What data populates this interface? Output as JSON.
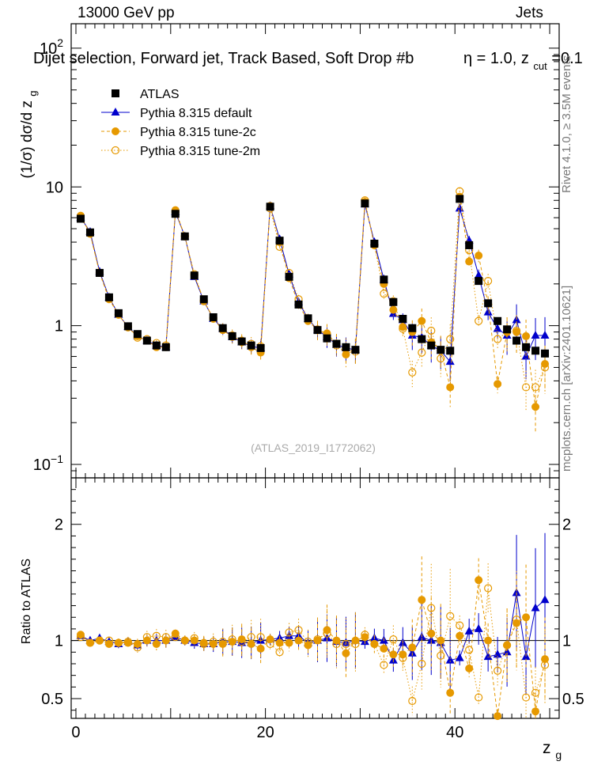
{
  "header": {
    "energy": "13000 GeV pp",
    "category": "Jets",
    "title_main": "Dijet selection, Forward jet, Track Based, Soft Drop #b",
    "title_eta": "η = 1.0, z",
    "title_cut": "cut",
    "title_tail": "=0.1"
  },
  "side_labels": {
    "rivet": "Rivet 4.1.0, ≥ 3.5M events",
    "mcplots": "mcplots.cern.ch [arXiv:2401.10621]"
  },
  "watermark": "(ATLAS_2019_I1772062)",
  "colors": {
    "atlas": "#000000",
    "default": "#0000cc",
    "tune2c": "#e69900",
    "tune2m": "#e69900",
    "refline": "#000000"
  },
  "chart_data": [
    {
      "type": "scatter",
      "panel": "main",
      "ylabel_pre": "(1/σ) dσ/d z",
      "ylabel_sub": "g",
      "yscale": "log",
      "xlim": [
        -0.5,
        51
      ],
      "ylim": [
        0.08,
        150
      ],
      "yticks": [
        {
          "v": 0.1,
          "base": "10",
          "exp": "−1"
        },
        {
          "v": 1,
          "base": "1",
          "exp": ""
        },
        {
          "v": 10,
          "base": "10",
          "exp": ""
        },
        {
          "v": 100,
          "base": "10",
          "exp": "2"
        }
      ],
      "x": [
        0.5,
        1.5,
        2.5,
        3.5,
        4.5,
        5.5,
        6.5,
        7.5,
        8.5,
        9.5,
        10.5,
        11.5,
        12.5,
        13.5,
        14.5,
        15.5,
        16.5,
        17.5,
        18.5,
        19.5,
        20.5,
        21.5,
        22.5,
        23.5,
        24.5,
        25.5,
        26.5,
        27.5,
        28.5,
        29.5,
        30.5,
        31.5,
        32.5,
        33.5,
        34.5,
        35.5,
        36.5,
        37.5,
        38.5,
        39.5,
        40.5,
        41.5,
        42.5,
        43.5,
        44.5,
        45.5,
        46.5,
        47.5,
        48.5,
        49.5
      ],
      "legend": [
        "ATLAS",
        "Pythia 8.315 default",
        "Pythia 8.315 tune-2c",
        "Pythia 8.315 tune-2m"
      ],
      "series": [
        {
          "name": "ATLAS",
          "values": [
            5.9,
            4.7,
            2.4,
            1.6,
            1.23,
            0.99,
            0.87,
            0.78,
            0.72,
            0.7,
            6.4,
            4.4,
            2.3,
            1.55,
            1.15,
            0.96,
            0.84,
            0.77,
            0.72,
            0.69,
            7.2,
            4.1,
            2.25,
            1.42,
            1.13,
            0.93,
            0.81,
            0.74,
            0.7,
            0.67,
            7.6,
            3.9,
            2.15,
            1.48,
            1.12,
            0.96,
            0.8,
            0.72,
            0.67,
            0.66,
            8.2,
            3.8,
            2.1,
            1.45,
            1.08,
            0.94,
            0.78,
            0.7,
            0.66,
            0.63
          ]
        },
        {
          "name": "Pythia 8.315 default",
          "values": [
            6.0,
            4.75,
            2.45,
            1.6,
            1.2,
            0.98,
            0.84,
            0.78,
            0.72,
            0.7,
            6.6,
            4.4,
            2.25,
            1.5,
            1.12,
            0.95,
            0.83,
            0.76,
            0.71,
            0.69,
            7.3,
            4.2,
            2.35,
            1.48,
            1.12,
            0.93,
            0.83,
            0.73,
            0.69,
            0.67,
            7.5,
            4.0,
            2.15,
            1.22,
            1.1,
            0.85,
            0.82,
            0.72,
            0.66,
            0.55,
            7.0,
            4.1,
            2.3,
            1.25,
            0.95,
            0.85,
            1.1,
            0.6,
            0.85,
            0.85
          ]
        },
        {
          "name": "Pythia 8.315 tune-2c",
          "values": [
            6.2,
            4.6,
            2.4,
            1.55,
            1.2,
            0.97,
            0.84,
            0.78,
            0.7,
            0.7,
            6.8,
            4.4,
            2.3,
            1.52,
            1.12,
            0.93,
            0.83,
            0.78,
            0.7,
            0.64,
            7.3,
            4.0,
            2.2,
            1.42,
            1.08,
            0.93,
            0.88,
            0.74,
            0.62,
            0.67,
            7.8,
            3.8,
            2.0,
            1.3,
            0.98,
            0.9,
            1.08,
            0.76,
            0.67,
            0.36,
            8.5,
            2.9,
            3.2,
            1.45,
            0.38,
            0.9,
            0.9,
            0.84,
            0.26,
            0.53
          ]
        },
        {
          "name": "Pythia 8.315 tune-2m",
          "values": [
            6.1,
            4.6,
            2.4,
            1.6,
            1.2,
            0.98,
            0.82,
            0.8,
            0.75,
            0.72,
            6.6,
            4.4,
            2.35,
            1.5,
            1.14,
            0.95,
            0.85,
            0.76,
            0.74,
            0.71,
            7.0,
            3.7,
            2.4,
            1.55,
            1.12,
            0.94,
            0.86,
            0.72,
            0.68,
            0.65,
            8.0,
            3.8,
            1.7,
            1.5,
            0.95,
            0.46,
            0.64,
            0.92,
            0.58,
            0.8,
            9.3,
            3.5,
            1.08,
            2.1,
            0.8,
            0.9,
            0.92,
            0.36,
            0.36,
            0.5
          ]
        }
      ]
    },
    {
      "type": "scatter",
      "panel": "ratio",
      "ylabel": "Ratio to ATLAS",
      "xlabel_pre": "z",
      "xlabel_sub": "g",
      "xlim": [
        -0.5,
        51
      ],
      "ylim": [
        0.33,
        2.4
      ],
      "yticks": [
        0.5,
        1,
        2
      ],
      "xticks": [
        0,
        20,
        40
      ],
      "x": [
        0.5,
        1.5,
        2.5,
        3.5,
        4.5,
        5.5,
        6.5,
        7.5,
        8.5,
        9.5,
        10.5,
        11.5,
        12.5,
        13.5,
        14.5,
        15.5,
        16.5,
        17.5,
        18.5,
        19.5,
        20.5,
        21.5,
        22.5,
        23.5,
        24.5,
        25.5,
        26.5,
        27.5,
        28.5,
        29.5,
        30.5,
        31.5,
        32.5,
        33.5,
        34.5,
        35.5,
        36.5,
        37.5,
        38.5,
        39.5,
        40.5,
        41.5,
        42.5,
        43.5,
        44.5,
        45.5,
        46.5,
        47.5,
        48.5,
        49.5
      ],
      "series": [
        {
          "name": "Pythia 8.315 default",
          "values": [
            1.04,
            1.0,
            1.02,
            0.99,
            0.97,
            0.99,
            0.96,
            1.0,
            1.0,
            1.0,
            1.03,
            1.0,
            0.98,
            0.97,
            0.97,
            0.99,
            0.99,
            0.98,
            0.98,
            1.0,
            1.01,
            1.02,
            1.04,
            1.04,
            0.98,
            1.0,
            1.02,
            0.99,
            0.98,
            1.0,
            0.99,
            1.02,
            1.0,
            0.83,
            0.98,
            0.89,
            1.03,
            1.0,
            0.98,
            0.83,
            0.85,
            1.08,
            1.1,
            0.86,
            0.88,
            0.9,
            1.41,
            0.86,
            1.28,
            1.35
          ]
        },
        {
          "name": "Pythia 8.315 tune-2c",
          "values": [
            1.05,
            0.98,
            1.0,
            0.97,
            0.98,
            0.98,
            0.97,
            1.0,
            0.97,
            1.0,
            1.06,
            1.0,
            1.0,
            0.98,
            0.97,
            0.97,
            0.99,
            1.01,
            0.97,
            0.93,
            1.01,
            0.98,
            0.98,
            1.0,
            0.96,
            1.0,
            1.09,
            1.0,
            0.89,
            1.0,
            1.03,
            0.97,
            0.93,
            0.88,
            0.88,
            0.94,
            1.35,
            1.06,
            1.0,
            0.55,
            1.04,
            0.76,
            1.52,
            1.0,
            0.35,
            0.96,
            1.15,
            1.2,
            0.39,
            0.84
          ]
        },
        {
          "name": "Pythia 8.315 tune-2m",
          "values": [
            1.03,
            0.98,
            1.0,
            1.0,
            0.98,
            0.99,
            0.94,
            1.03,
            1.04,
            1.03,
            1.03,
            1.0,
            1.02,
            0.97,
            0.99,
            0.99,
            1.01,
            0.99,
            1.03,
            1.03,
            0.97,
            0.9,
            1.07,
            1.09,
            0.99,
            1.01,
            1.06,
            0.97,
            0.97,
            0.97,
            1.05,
            0.97,
            0.79,
            1.01,
            0.85,
            0.48,
            0.8,
            1.28,
            0.87,
            1.21,
            1.13,
            0.92,
            0.51,
            1.45,
            0.74,
            0.96,
            1.18,
            0.51,
            0.55,
            0.79
          ]
        }
      ]
    }
  ]
}
